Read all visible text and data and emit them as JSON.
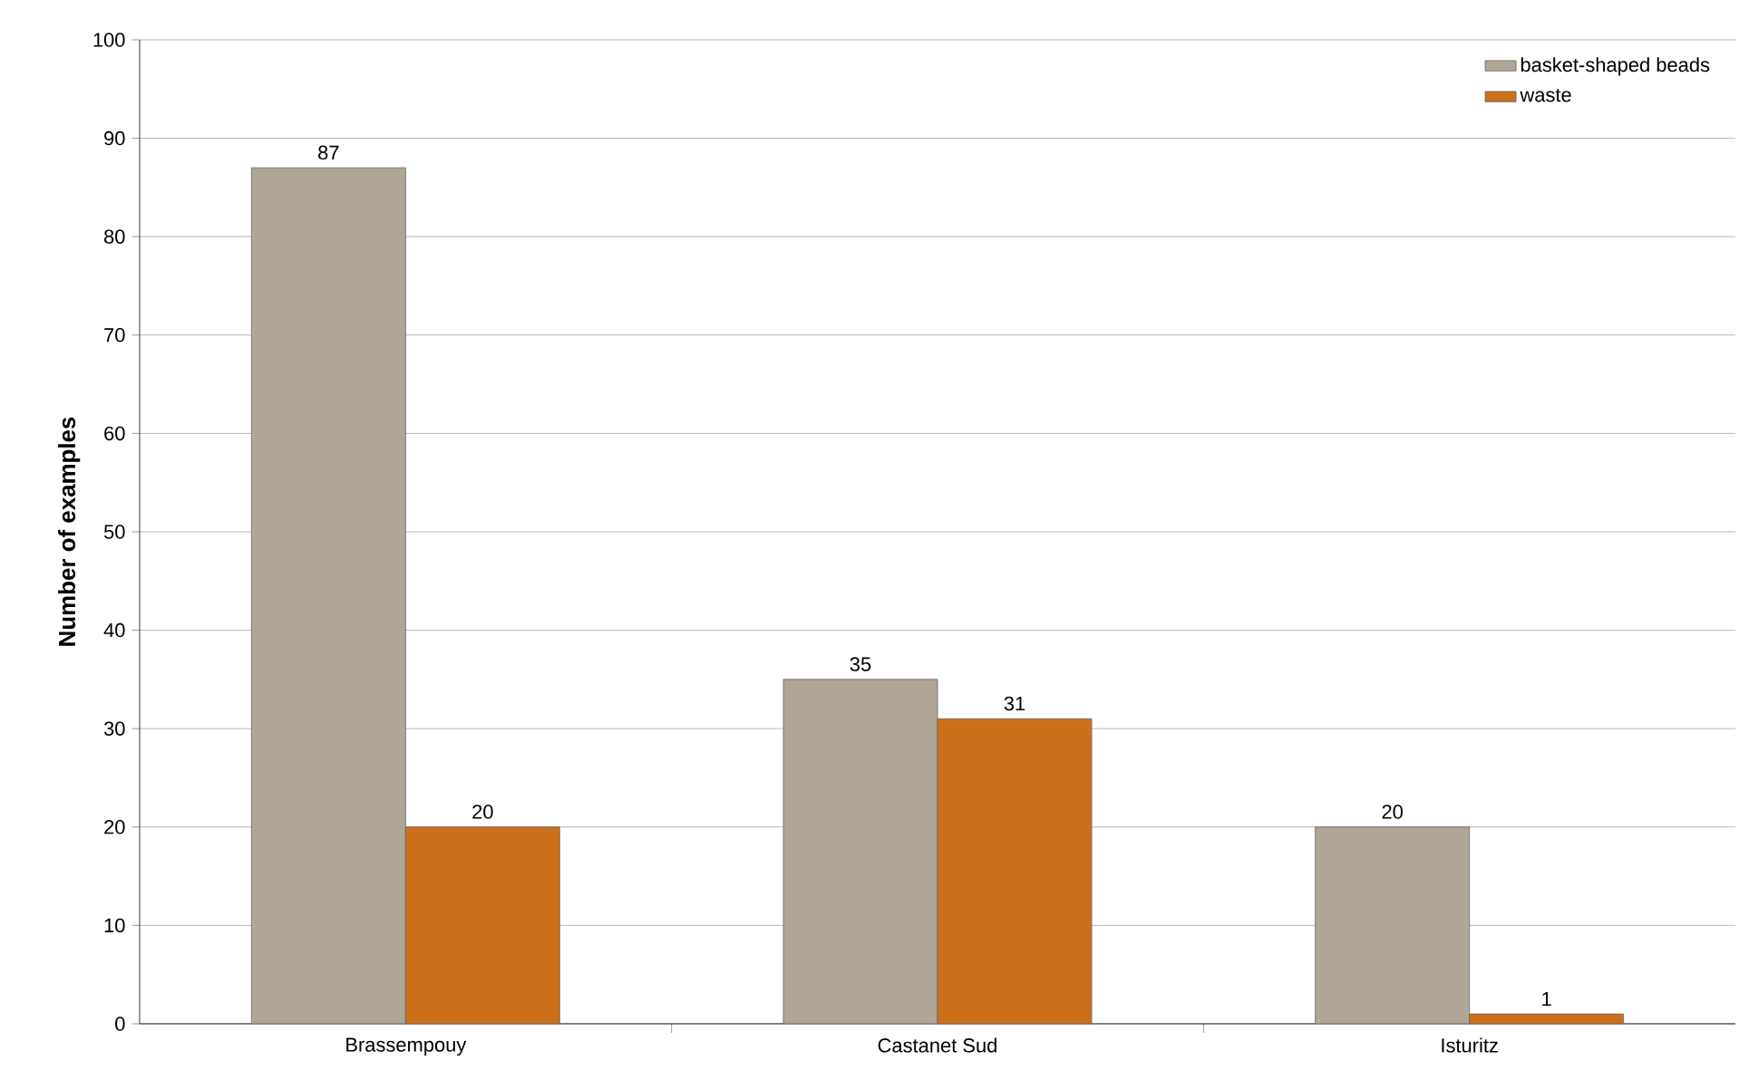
{
  "chart_data": {
    "type": "bar",
    "ylabel": "Number of examples",
    "categories": [
      "Brassempouy",
      "Castanet Sud",
      "Isturitz"
    ],
    "series": [
      {
        "name": "basket-shaped beads",
        "color": "#b0a597",
        "values": [
          87,
          35,
          20
        ]
      },
      {
        "name": "waste",
        "color": "#cc6f1a",
        "values": [
          20,
          31,
          1
        ]
      }
    ],
    "ylim": [
      0,
      100
    ],
    "yticks": [
      0,
      10,
      20,
      30,
      40,
      50,
      60,
      70,
      80,
      90,
      100
    ],
    "grid": "y",
    "legend": "top right",
    "data_labels": true
  }
}
